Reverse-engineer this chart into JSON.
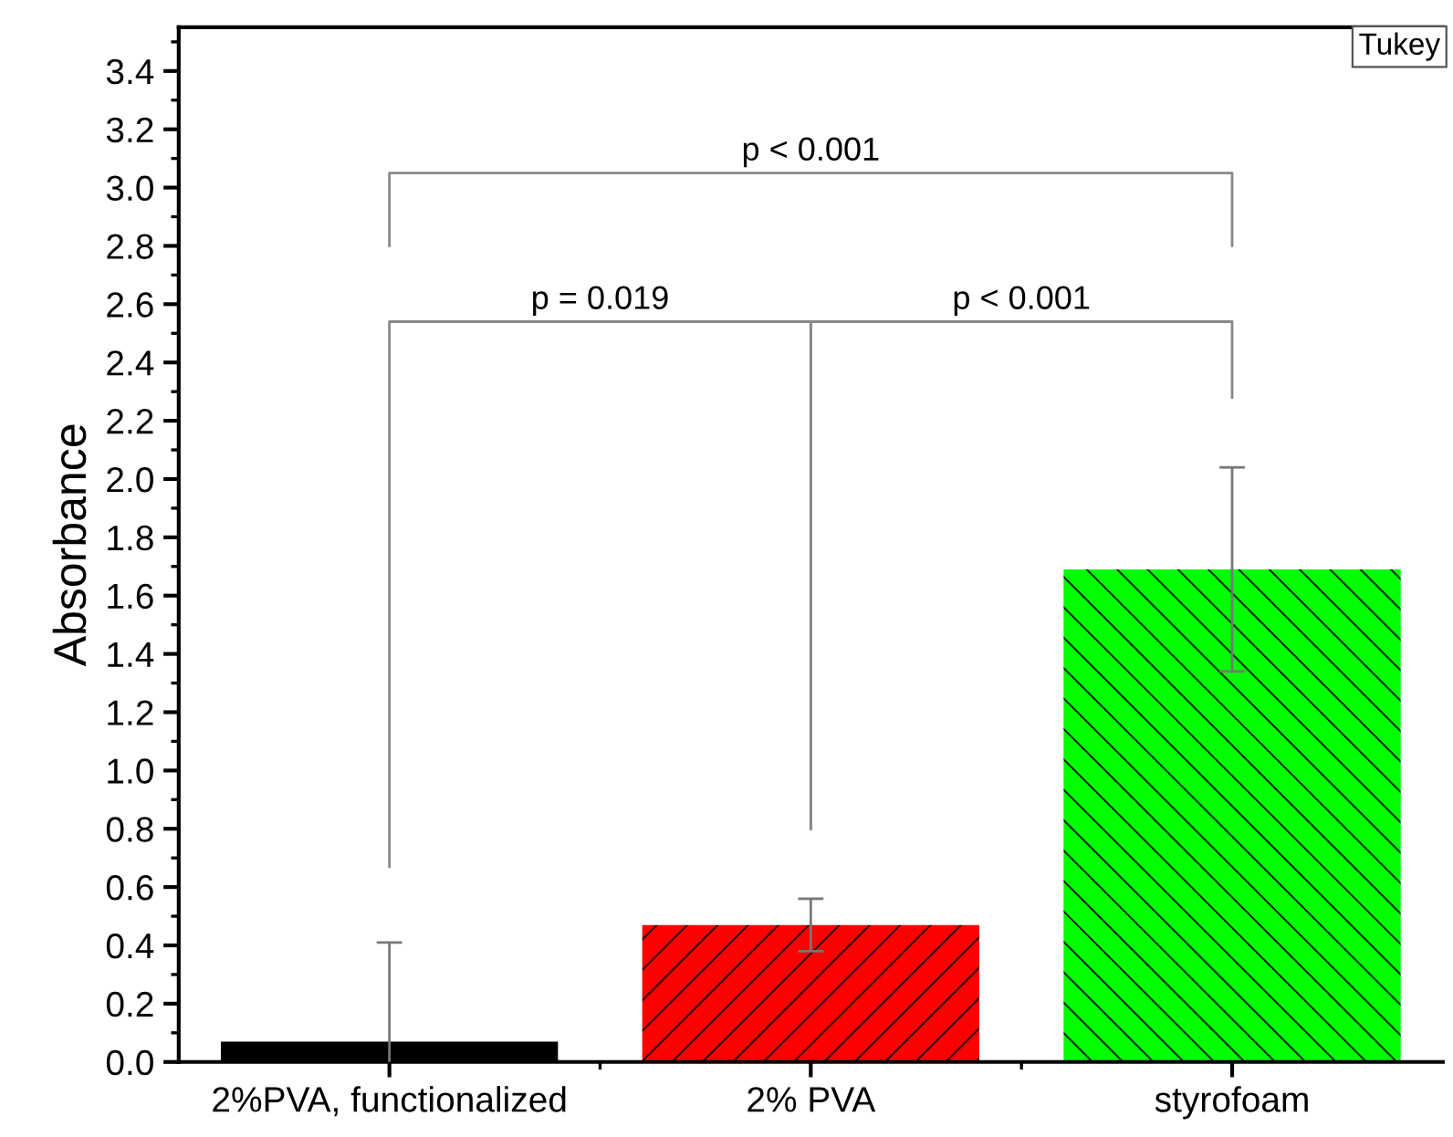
{
  "chart_data": {
    "type": "bar",
    "ylabel": "Absorbance",
    "categories": [
      "2%PVA, functionalized",
      "2% PVA",
      "styrofoam"
    ],
    "values": [
      0.07,
      0.47,
      1.69
    ],
    "colors": [
      "#000000",
      "#ff0000",
      "#00ff00"
    ],
    "errors": [
      0.34,
      0.09,
      0.35
    ],
    "ylim": [
      0,
      3.55
    ],
    "yticks": [
      {
        "value": 0,
        "label": "0.0"
      },
      0.2,
      0.4,
      0.6,
      0.8,
      {
        "value": 1,
        "label": "1.0"
      },
      1.2,
      1.4,
      1.6,
      1.8,
      {
        "value": 2,
        "label": "2.0"
      },
      2.2,
      2.4,
      2.6,
      2.8,
      {
        "value": 3,
        "label": "3.0"
      },
      3.2,
      3.4
    ],
    "grid": false,
    "annotations": [
      "Tukey",
      "p = 0.019",
      "p < 0.001",
      "p < 0.001"
    ]
  }
}
